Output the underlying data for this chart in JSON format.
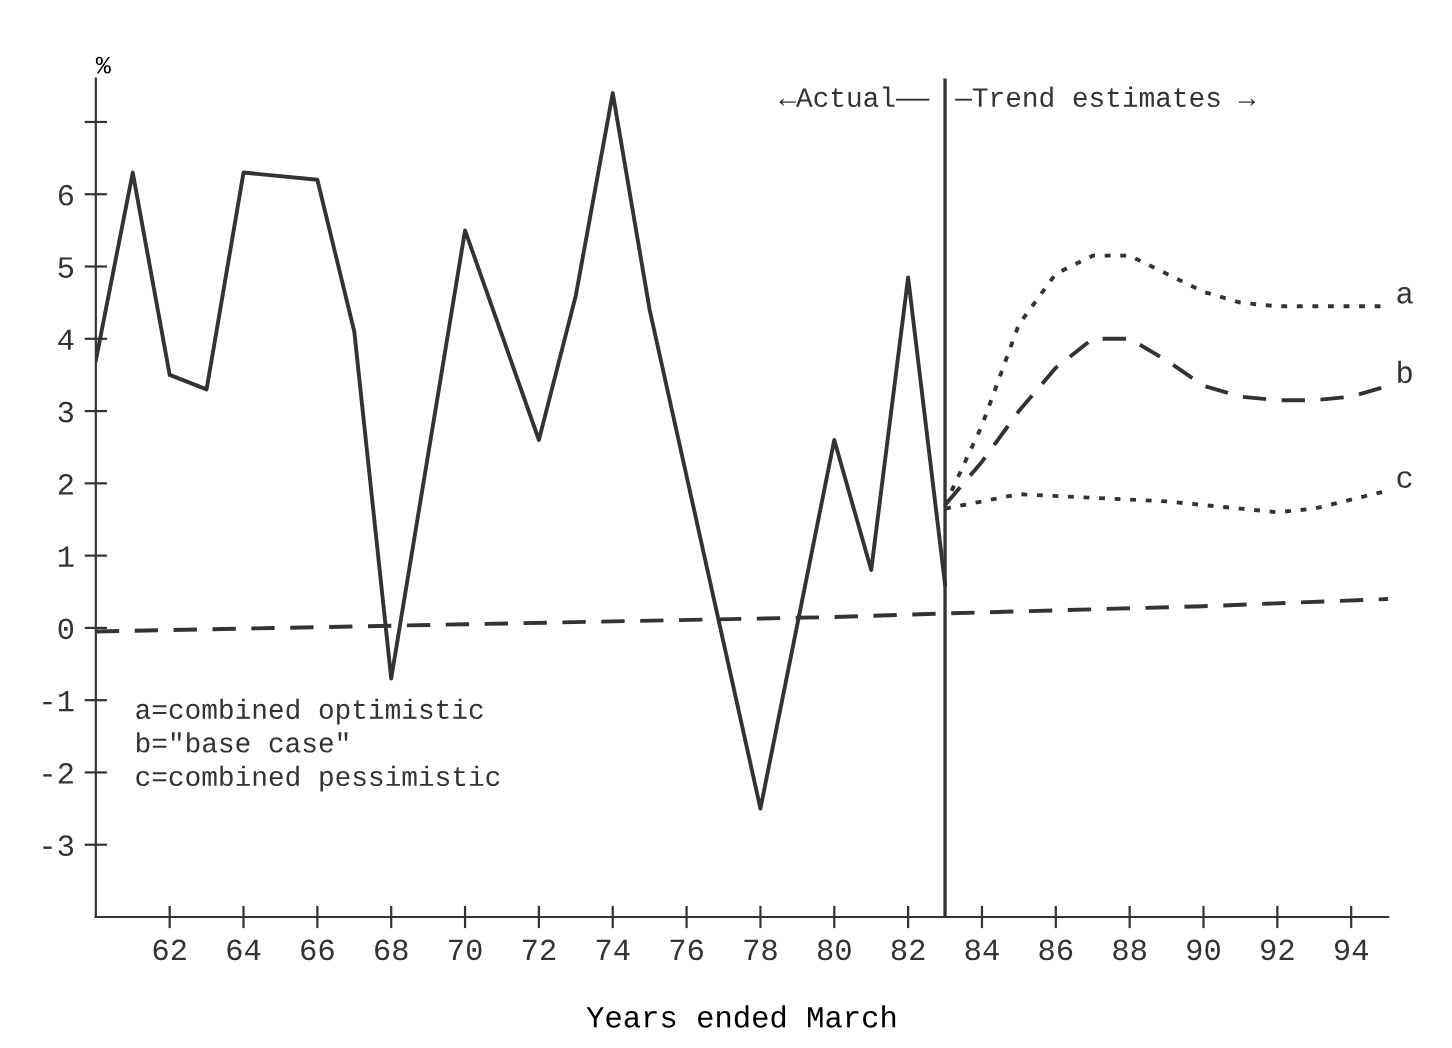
{
  "chart_data": {
    "type": "line",
    "xlabel": "Years ended March",
    "ylabel": "%",
    "xlim": [
      60,
      95
    ],
    "xticks": [
      62,
      64,
      66,
      68,
      70,
      72,
      74,
      76,
      78,
      80,
      82,
      84,
      86,
      88,
      90,
      92,
      94
    ],
    "ylim": [
      -4,
      7.6
    ],
    "yticks": [
      -3,
      -2,
      -1,
      0,
      1,
      2,
      3,
      4,
      5,
      6,
      {
        "value": 7,
        "label": null
      }
    ],
    "grid": false,
    "legend": false,
    "marker": "none",
    "series": [
      {
        "color": "#333333",
        "line_style": "solid",
        "x": [
          60,
          61,
          62,
          63,
          64,
          66,
          67,
          68,
          70,
          72,
          73,
          74,
          75,
          78,
          80,
          81,
          82,
          83
        ],
        "values": [
          3.7,
          6.3,
          3.5,
          3.3,
          6.3,
          6.2,
          4.1,
          -0.7,
          5.5,
          2.6,
          4.6,
          7.4,
          4.4,
          -2.5,
          2.6,
          0.8,
          4.85,
          0.6
        ]
      },
      {
        "color": "#333333",
        "line_style": "dashed",
        "x": [
          60,
          70,
          80,
          83,
          90,
          95
        ],
        "values": [
          -0.05,
          0.05,
          0.15,
          0.2,
          0.3,
          0.4
        ]
      },
      {
        "name": "a",
        "color": "#333333",
        "line_style": "dotted",
        "x": [
          83,
          84,
          85,
          86,
          87,
          88,
          89,
          90,
          91,
          92,
          93,
          95
        ],
        "values": [
          1.7,
          2.8,
          4.2,
          4.9,
          5.15,
          5.15,
          4.9,
          4.65,
          4.5,
          4.45,
          4.45,
          4.45
        ]
      },
      {
        "name": "b",
        "color": "#333333",
        "line_style": "dashed",
        "x": [
          83,
          84,
          85,
          86,
          87,
          88,
          89,
          90,
          91,
          92,
          93,
          94,
          95
        ],
        "values": [
          1.7,
          2.3,
          3.0,
          3.6,
          4.0,
          4.0,
          3.7,
          3.35,
          3.2,
          3.15,
          3.15,
          3.2,
          3.35
        ]
      },
      {
        "name": "c",
        "color": "#333333",
        "line_style": "dotted",
        "x": [
          83,
          85,
          87,
          89,
          91,
          92,
          93,
          95
        ],
        "values": [
          1.65,
          1.85,
          1.8,
          1.75,
          1.65,
          1.6,
          1.65,
          1.9
        ]
      }
    ],
    "ref_lines": [
      {
        "axis": "x",
        "value": 83,
        "color": "#333333",
        "line_style": "solid"
      }
    ],
    "annotations": [
      "←Actual——",
      "—Trend estimates →",
      "a=combined optimistic",
      "b=\"base case\"",
      "c=combined pessimistic"
    ]
  }
}
